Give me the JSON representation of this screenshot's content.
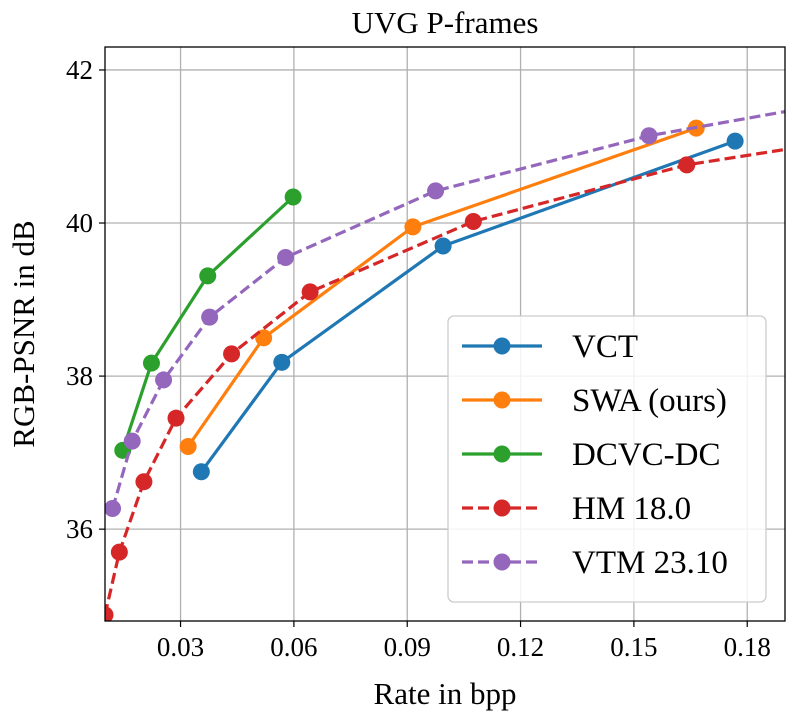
{
  "chart_data": {
    "type": "line",
    "title": "UVG P-frames",
    "xlabel": "Rate in bpp",
    "ylabel": "RGB-PSNR in dB",
    "xlim": [
      0.01,
      0.19
    ],
    "ylim": [
      34.8,
      42.3
    ],
    "xticks": [
      0.03,
      0.06,
      0.09,
      0.12,
      0.15,
      0.18
    ],
    "xtick_labels": [
      "0.03",
      "0.06",
      "0.09",
      "0.12",
      "0.15",
      "0.18"
    ],
    "yticks": [
      36,
      38,
      40,
      42
    ],
    "ytick_labels": [
      "36",
      "38",
      "40",
      "42"
    ],
    "grid": true,
    "legend_position": "lower-right",
    "series": [
      {
        "name": "VCT",
        "color": "#1f77b4",
        "dashed": false,
        "x": [
          0.0355,
          0.0568,
          0.0995,
          0.1768
        ],
        "y": [
          36.75,
          38.18,
          39.7,
          41.07
        ]
      },
      {
        "name": "SWA (ours)",
        "color": "#ff7f0e",
        "dashed": false,
        "x": [
          0.032,
          0.052,
          0.0915,
          0.1665
        ],
        "y": [
          37.08,
          38.5,
          39.95,
          41.24
        ]
      },
      {
        "name": "DCVC-DC",
        "color": "#2ca02c",
        "dashed": false,
        "x": [
          0.0147,
          0.0223,
          0.0372,
          0.0598
        ],
        "y": [
          37.03,
          38.17,
          39.31,
          40.34
        ]
      },
      {
        "name": "HM 18.0",
        "color": "#d62728",
        "dashed": true,
        "x": [
          0.01,
          0.0138,
          0.0203,
          0.0288,
          0.0435,
          0.0643,
          0.1075,
          0.164,
          0.195
        ],
        "y": [
          34.88,
          35.7,
          36.62,
          37.45,
          38.29,
          39.1,
          40.02,
          40.76,
          41.0
        ]
      },
      {
        "name": "VTM 23.10",
        "color": "#9467bd",
        "dashed": true,
        "x": [
          0.012,
          0.0172,
          0.0255,
          0.0377,
          0.0578,
          0.0975,
          0.154,
          0.195
        ],
        "y": [
          36.27,
          37.15,
          37.95,
          38.77,
          39.55,
          40.42,
          41.14,
          41.5
        ]
      }
    ]
  }
}
